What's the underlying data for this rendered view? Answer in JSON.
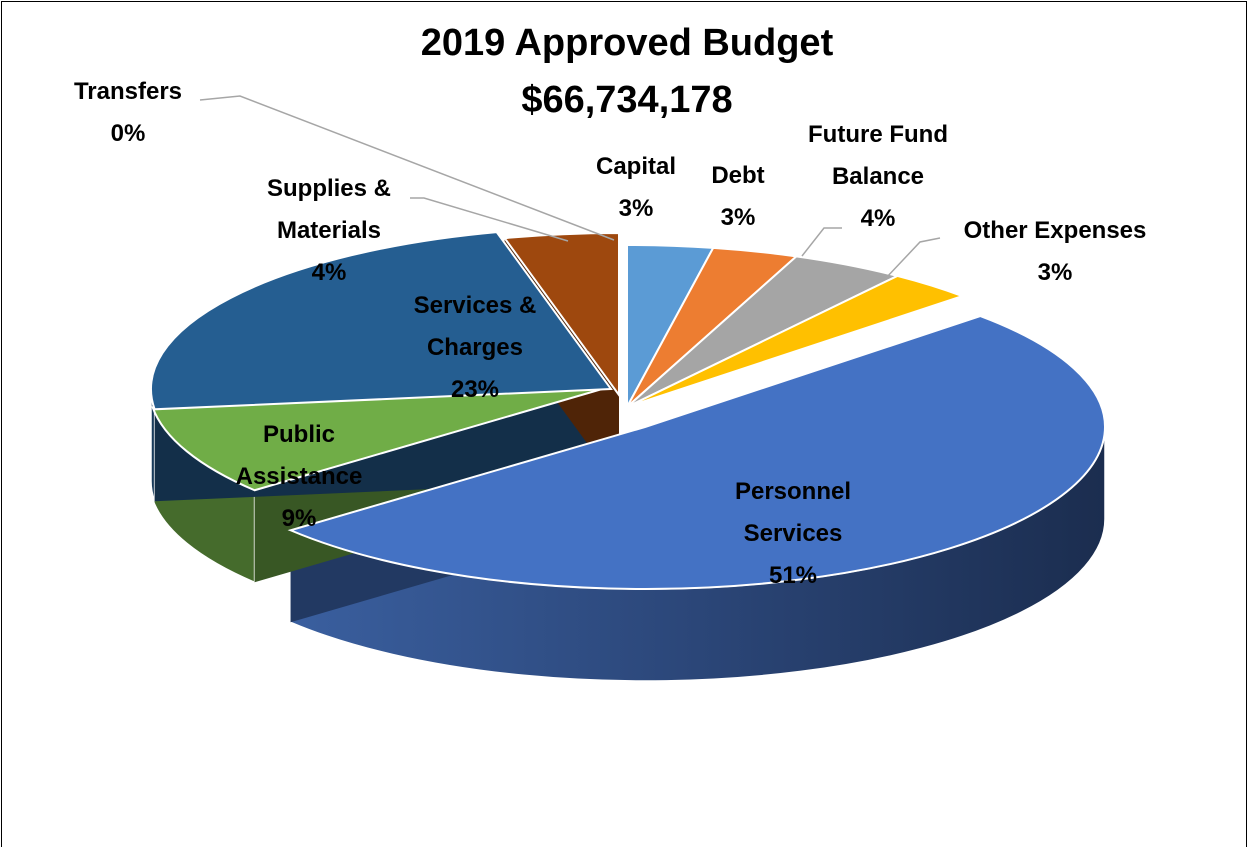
{
  "chart_data": {
    "type": "pie",
    "title": "2019 Approved Budget",
    "subtitle": "$66,734,178",
    "slices": [
      {
        "label": [
          "Capital"
        ],
        "pct": "3%",
        "value": 3,
        "color": "#5B9BD5"
      },
      {
        "label": [
          "Debt"
        ],
        "pct": "3%",
        "value": 3,
        "color": "#ED7D31"
      },
      {
        "label": [
          "Future Fund",
          "Balance"
        ],
        "pct": "4%",
        "value": 4,
        "color": "#A5A5A5"
      },
      {
        "label": [
          "Other Expenses"
        ],
        "pct": "3%",
        "value": 3,
        "color": "#FFC000"
      },
      {
        "label": [
          "Personnel",
          "Services"
        ],
        "pct": "51%",
        "value": 51,
        "color": "#4472C4"
      },
      {
        "label": [
          "Public",
          "Assistance"
        ],
        "pct": "9%",
        "value": 9,
        "color": "#70AD47"
      },
      {
        "label": [
          "Services &",
          "Charges"
        ],
        "pct": "23%",
        "value": 23,
        "color": "#255E91"
      },
      {
        "label": [
          "Supplies &",
          "Materials"
        ],
        "pct": "4%",
        "value": 4,
        "color": "#9E480E"
      },
      {
        "label": [
          "Transfers"
        ],
        "pct": "0%",
        "value": 0,
        "color": "#636363"
      }
    ],
    "legend": "none"
  }
}
